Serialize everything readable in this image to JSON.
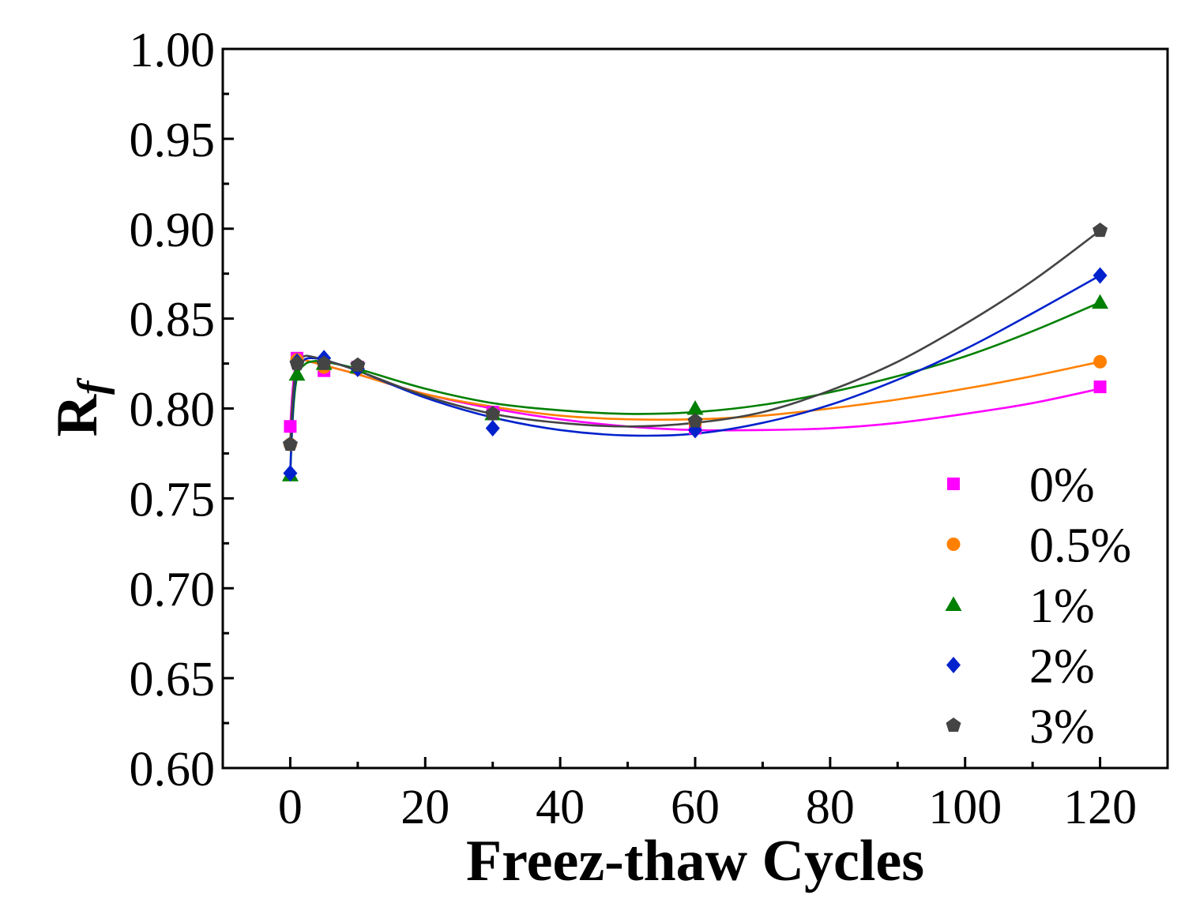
{
  "chart_data": {
    "type": "scatter",
    "title": "",
    "xlabel": "Freez-thaw Cycles",
    "ylabel": {
      "main": "R",
      "sub": "f"
    },
    "xlim": [
      -10,
      130
    ],
    "ylim": [
      0.6,
      1.0
    ],
    "xticks": [
      "0",
      "20",
      "40",
      "60",
      "80",
      "100",
      "120"
    ],
    "yticks": [
      "0.60",
      "0.65",
      "0.70",
      "0.75",
      "0.80",
      "0.85",
      "0.90",
      "0.95",
      "1.00"
    ],
    "grid": false,
    "legend_position": "bottom-right",
    "series": [
      {
        "name": "0%",
        "marker": "square",
        "color": "#ff00ff",
        "points": [
          [
            0,
            0.79
          ],
          [
            1,
            0.828
          ],
          [
            5,
            0.821
          ],
          [
            10,
            0.823
          ],
          [
            30,
            0.798
          ],
          [
            60,
            0.789
          ],
          [
            120,
            0.812
          ]
        ],
        "fit": [
          [
            0,
            0.79
          ],
          [
            0.3,
            0.808
          ],
          [
            0.7,
            0.822
          ],
          [
            1.2,
            0.827
          ],
          [
            2,
            0.827
          ],
          [
            3,
            0.826
          ],
          [
            5,
            0.824
          ],
          [
            10,
            0.819
          ],
          [
            20,
            0.808
          ],
          [
            30,
            0.8
          ],
          [
            40,
            0.794
          ],
          [
            50,
            0.79
          ],
          [
            60,
            0.788
          ],
          [
            70,
            0.788
          ],
          [
            80,
            0.789
          ],
          [
            90,
            0.792
          ],
          [
            100,
            0.797
          ],
          [
            110,
            0.803
          ],
          [
            120,
            0.811
          ]
        ]
      },
      {
        "name": "0.5%",
        "marker": "circle",
        "color": "#ff8000",
        "points": [
          [
            0,
            0.78
          ],
          [
            1,
            0.827
          ],
          [
            5,
            0.823
          ],
          [
            10,
            0.822
          ],
          [
            30,
            0.797
          ],
          [
            60,
            0.792
          ],
          [
            120,
            0.826
          ]
        ],
        "fit": [
          [
            0,
            0.78
          ],
          [
            0.3,
            0.802
          ],
          [
            0.7,
            0.818
          ],
          [
            1.2,
            0.826
          ],
          [
            2,
            0.827
          ],
          [
            3,
            0.826
          ],
          [
            5,
            0.824
          ],
          [
            10,
            0.819
          ],
          [
            20,
            0.808
          ],
          [
            30,
            0.801
          ],
          [
            40,
            0.796
          ],
          [
            50,
            0.794
          ],
          [
            60,
            0.794
          ],
          [
            70,
            0.796
          ],
          [
            80,
            0.8
          ],
          [
            90,
            0.805
          ],
          [
            100,
            0.811
          ],
          [
            110,
            0.818
          ],
          [
            120,
            0.826
          ]
        ]
      },
      {
        "name": "1%",
        "marker": "triangle",
        "color": "#008000",
        "points": [
          [
            0,
            0.763
          ],
          [
            1,
            0.819
          ],
          [
            5,
            0.825
          ],
          [
            10,
            0.823
          ],
          [
            30,
            0.797
          ],
          [
            60,
            0.8
          ],
          [
            120,
            0.859
          ]
        ],
        "fit": [
          [
            0,
            0.763
          ],
          [
            0.3,
            0.79
          ],
          [
            0.7,
            0.81
          ],
          [
            1.2,
            0.82
          ],
          [
            2,
            0.824
          ],
          [
            3,
            0.826
          ],
          [
            5,
            0.826
          ],
          [
            10,
            0.822
          ],
          [
            20,
            0.811
          ],
          [
            30,
            0.803
          ],
          [
            40,
            0.799
          ],
          [
            50,
            0.797
          ],
          [
            60,
            0.798
          ],
          [
            70,
            0.802
          ],
          [
            80,
            0.809
          ],
          [
            90,
            0.818
          ],
          [
            100,
            0.829
          ],
          [
            110,
            0.843
          ],
          [
            120,
            0.859
          ]
        ]
      },
      {
        "name": "2%",
        "marker": "diamond",
        "color": "#0022cc",
        "points": [
          [
            0,
            0.764
          ],
          [
            1,
            0.826
          ],
          [
            5,
            0.828
          ],
          [
            10,
            0.822
          ],
          [
            30,
            0.789
          ],
          [
            60,
            0.788
          ],
          [
            120,
            0.874
          ]
        ],
        "fit": [
          [
            0,
            0.764
          ],
          [
            0.3,
            0.795
          ],
          [
            0.7,
            0.815
          ],
          [
            1.2,
            0.824
          ],
          [
            2,
            0.827
          ],
          [
            3,
            0.828
          ],
          [
            5,
            0.827
          ],
          [
            10,
            0.821
          ],
          [
            20,
            0.806
          ],
          [
            30,
            0.795
          ],
          [
            40,
            0.788
          ],
          [
            50,
            0.785
          ],
          [
            60,
            0.786
          ],
          [
            70,
            0.792
          ],
          [
            80,
            0.802
          ],
          [
            90,
            0.816
          ],
          [
            100,
            0.833
          ],
          [
            110,
            0.853
          ],
          [
            120,
            0.874
          ]
        ]
      },
      {
        "name": "3%",
        "marker": "pentagon",
        "color": "#444444",
        "points": [
          [
            0,
            0.78
          ],
          [
            1,
            0.825
          ],
          [
            5,
            0.825
          ],
          [
            10,
            0.824
          ],
          [
            30,
            0.797
          ],
          [
            60,
            0.793
          ],
          [
            120,
            0.899
          ]
        ],
        "fit": [
          [
            0,
            0.78
          ],
          [
            0.3,
            0.802
          ],
          [
            0.7,
            0.818
          ],
          [
            1.2,
            0.826
          ],
          [
            2,
            0.829
          ],
          [
            3,
            0.829
          ],
          [
            5,
            0.827
          ],
          [
            10,
            0.821
          ],
          [
            20,
            0.807
          ],
          [
            30,
            0.797
          ],
          [
            40,
            0.792
          ],
          [
            50,
            0.79
          ],
          [
            60,
            0.792
          ],
          [
            70,
            0.798
          ],
          [
            80,
            0.81
          ],
          [
            90,
            0.826
          ],
          [
            100,
            0.847
          ],
          [
            110,
            0.871
          ],
          [
            120,
            0.899
          ]
        ]
      }
    ]
  }
}
